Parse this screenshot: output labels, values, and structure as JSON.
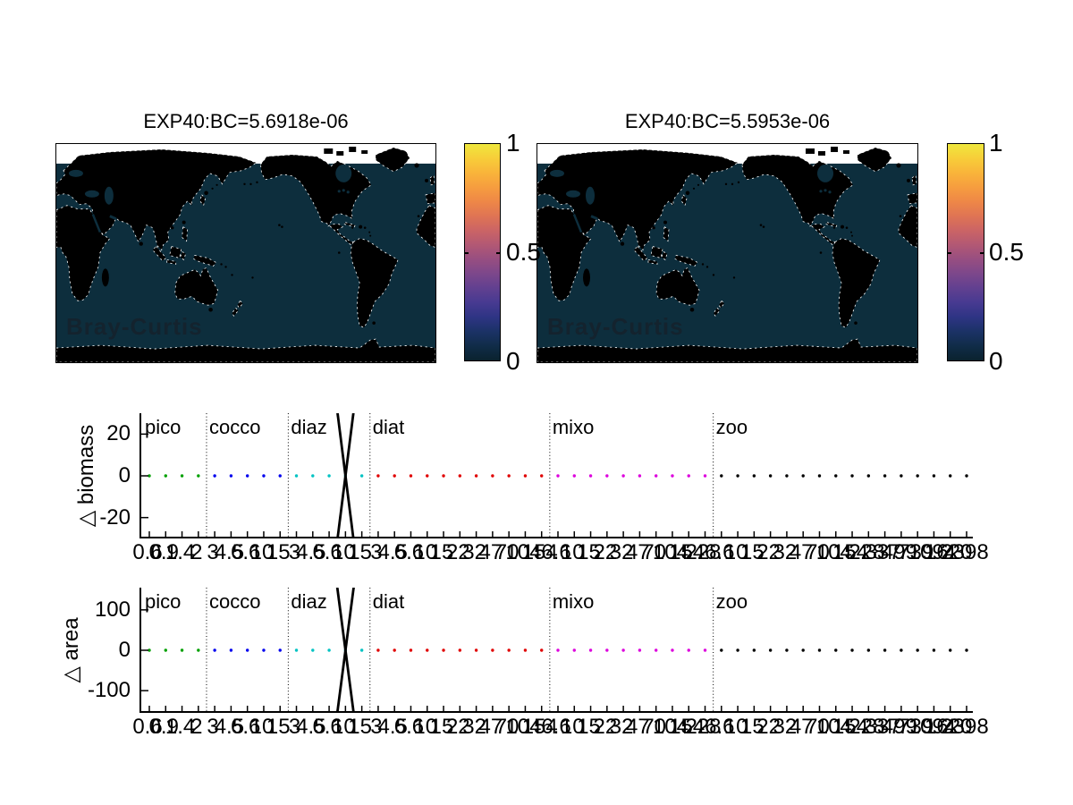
{
  "figure": {
    "background": "#ffffff"
  },
  "maps": {
    "panels": [
      {
        "title": "EXP40:BC=5.6918e-06",
        "annotation": "Bray-Curtis"
      },
      {
        "title": "EXP40:BC=5.5953e-06",
        "annotation": "Bray-Curtis"
      }
    ],
    "colorbar": {
      "tick_labels": [
        "1",
        "0.5",
        "0"
      ],
      "colormap_name": "thermal",
      "gradient_bottom_to_top": [
        "#0a222e",
        "#102c48",
        "#1b3266",
        "#2e3484",
        "#473a91",
        "#614090",
        "#7c478b",
        "#974e81",
        "#b25874",
        "#cb6465",
        "#df7454",
        "#ee8747",
        "#f69d3f",
        "#f9b43a",
        "#f7cd39",
        "#efe83d"
      ]
    },
    "ocean_color": "#0d2e3d",
    "land_color": "#000000",
    "nodata_color": "#ffffff"
  },
  "chart_data": [
    {
      "type": "line",
      "ylabel": "△ biomass",
      "yticks": [
        20,
        0,
        -20
      ],
      "ylim": [
        -30,
        30
      ],
      "groups": [
        {
          "label": "pico",
          "color": "#00a000",
          "sizes": [
            "0.6",
            "0.9",
            "1.4",
            "2"
          ]
        },
        {
          "label": "cocco",
          "color": "#0000ee",
          "sizes": [
            "3",
            "4.5",
            "6.6",
            "10",
            "15"
          ]
        },
        {
          "label": "diaz",
          "color": "#00c3c3",
          "sizes": [
            "3",
            "4.5",
            "6.6",
            "10",
            "15"
          ]
        },
        {
          "label": "diat",
          "color": "#e00000",
          "sizes": [
            "3",
            "4.5",
            "6.6",
            "10",
            "15",
            "22",
            "32",
            "47",
            "70",
            "104",
            "154"
          ]
        },
        {
          "label": "mixo",
          "color": "#dd00dd",
          "sizes": [
            "6.6",
            "10",
            "15",
            "22",
            "32",
            "47",
            "70",
            "104",
            "154",
            "228"
          ]
        },
        {
          "label": "zoo",
          "color": "#000000",
          "sizes": [
            "6.6",
            "10",
            "15",
            "22",
            "32",
            "47",
            "70",
            "104",
            "154",
            "228",
            "337",
            "499",
            "739",
            "1094",
            "1620",
            "2398"
          ]
        }
      ],
      "baseline_value": 0,
      "anomaly": {
        "group": "diaz",
        "class_indices": [
          11,
          13
        ],
        "lines": [
          [
            62,
            -62
          ],
          [
            -62,
            62
          ]
        ],
        "color": "#000000"
      }
    },
    {
      "type": "line",
      "ylabel": "△ area",
      "yticks": [
        100,
        0,
        -100
      ],
      "ylim": [
        -155,
        155
      ],
      "groups": [
        {
          "label": "pico",
          "color": "#00a000",
          "sizes": [
            "0.6",
            "0.9",
            "1.4",
            "2"
          ]
        },
        {
          "label": "cocco",
          "color": "#0000ee",
          "sizes": [
            "3",
            "4.5",
            "6.6",
            "10",
            "15"
          ]
        },
        {
          "label": "diaz",
          "color": "#00c3c3",
          "sizes": [
            "3",
            "4.5",
            "6.6",
            "10",
            "15"
          ]
        },
        {
          "label": "diat",
          "color": "#e00000",
          "sizes": [
            "3",
            "4.5",
            "6.6",
            "10",
            "15",
            "22",
            "32",
            "47",
            "70",
            "104",
            "154"
          ]
        },
        {
          "label": "mixo",
          "color": "#dd00dd",
          "sizes": [
            "6.6",
            "10",
            "15",
            "22",
            "32",
            "47",
            "70",
            "104",
            "154",
            "228"
          ]
        },
        {
          "label": "zoo",
          "color": "#000000",
          "sizes": [
            "6.6",
            "10",
            "15",
            "22",
            "32",
            "47",
            "70",
            "104",
            "154",
            "228",
            "337",
            "499",
            "739",
            "1094",
            "1620",
            "2398"
          ]
        }
      ],
      "baseline_value": 0,
      "anomaly": {
        "group": "diaz",
        "class_indices": [
          11,
          13
        ],
        "lines": [
          [
            310,
            -310
          ],
          [
            -310,
            310
          ]
        ],
        "color": "#000000"
      }
    }
  ]
}
